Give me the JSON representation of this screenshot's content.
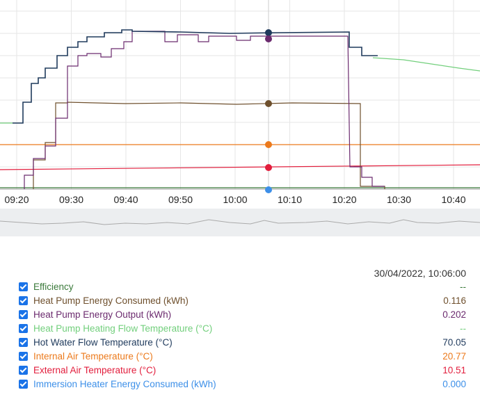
{
  "x_ticks": [
    "09:20",
    "09:30",
    "09:40",
    "09:50",
    "10:00",
    "10:10",
    "10:20",
    "10:30",
    "10:40"
  ],
  "cursor_time": "30/04/2022, 10:06:00",
  "legend": [
    {
      "label": "Efficiency",
      "value": "--",
      "color": "#3b7a3b"
    },
    {
      "label": "Heat Pump Energy Consumed (kWh)",
      "value": "0.116",
      "color": "#6e4f2c"
    },
    {
      "label": "Heat Pump Energy Output (kWh)",
      "value": "0.202",
      "color": "#6b2a6e"
    },
    {
      "label": "Heat Pump Heating Flow Temperature (°C)",
      "value": "--",
      "color": "#72cf7c"
    },
    {
      "label": "Hot Water Flow Temperature (°C)",
      "value": "70.05",
      "color": "#1f3a5c"
    },
    {
      "label": "Internal Air Temperature (°C)",
      "value": "20.77",
      "color": "#ec7a1c"
    },
    {
      "label": "External Air Temperature (°C)",
      "value": "10.51",
      "color": "#e21d3c"
    },
    {
      "label": "Immersion Heater Energy Consumed (kWh)",
      "value": "0.000",
      "color": "#3c8fe8"
    }
  ]
}
